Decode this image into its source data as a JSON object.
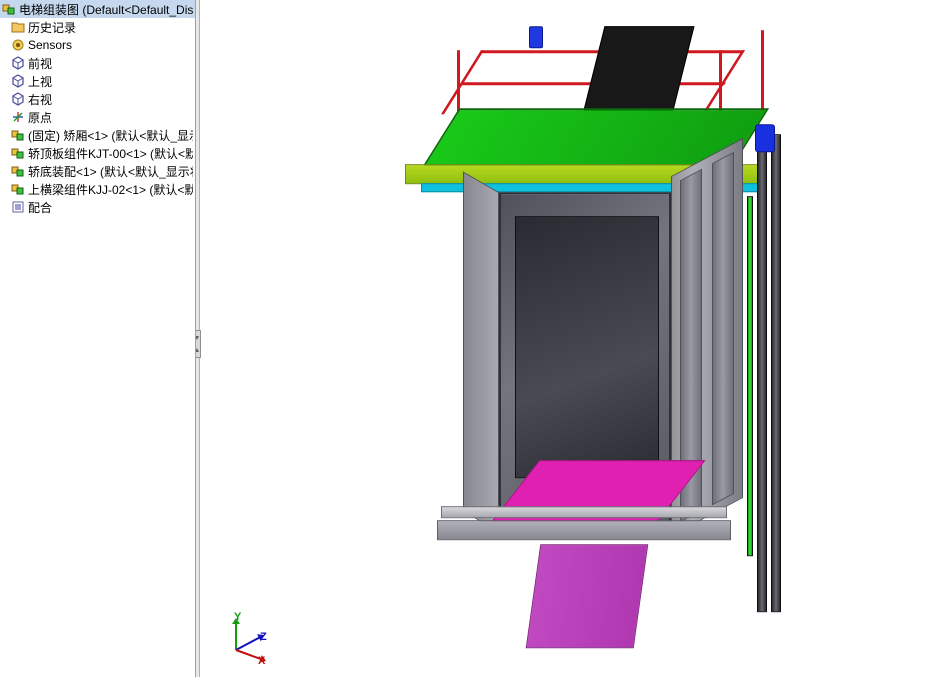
{
  "tree": {
    "root": "电梯组装图   (Default<Default_Disp",
    "items": [
      {
        "icon": "folder",
        "label": "历史记录"
      },
      {
        "icon": "sensor",
        "label": "Sensors"
      },
      {
        "icon": "view",
        "label": "前视"
      },
      {
        "icon": "view",
        "label": "上视"
      },
      {
        "icon": "view",
        "label": "右视"
      },
      {
        "icon": "origin",
        "label": "原点"
      },
      {
        "icon": "assembly",
        "label": "(固定) 矫厢<1> (默认<默认_显示"
      },
      {
        "icon": "assembly",
        "label": "轿顶板组件KJT-00<1> (默认<默"
      },
      {
        "icon": "assembly",
        "label": "轿底装配<1> (默认<默认_显示状"
      },
      {
        "icon": "assembly",
        "label": "上横梁组件KJJ-02<1> (默认<默"
      },
      {
        "icon": "mate",
        "label": "配合"
      }
    ]
  },
  "axes": {
    "x": "X",
    "y": "Y",
    "z": "Z"
  },
  "colors": {
    "rail_red": "#d01820",
    "platform_green": "#18c818",
    "beam_lime": "#b8d820",
    "beam_cyan": "#10c0e0",
    "cabin_gray": "#74747e",
    "cabin_dark": "#30303a",
    "floor_magenta": "#e020b0",
    "drop_purple": "#c048c0",
    "guide_dark": "#2a2a2e",
    "motor_blue": "#1830e0",
    "tree_selected_bg": "#c5d8ee"
  }
}
